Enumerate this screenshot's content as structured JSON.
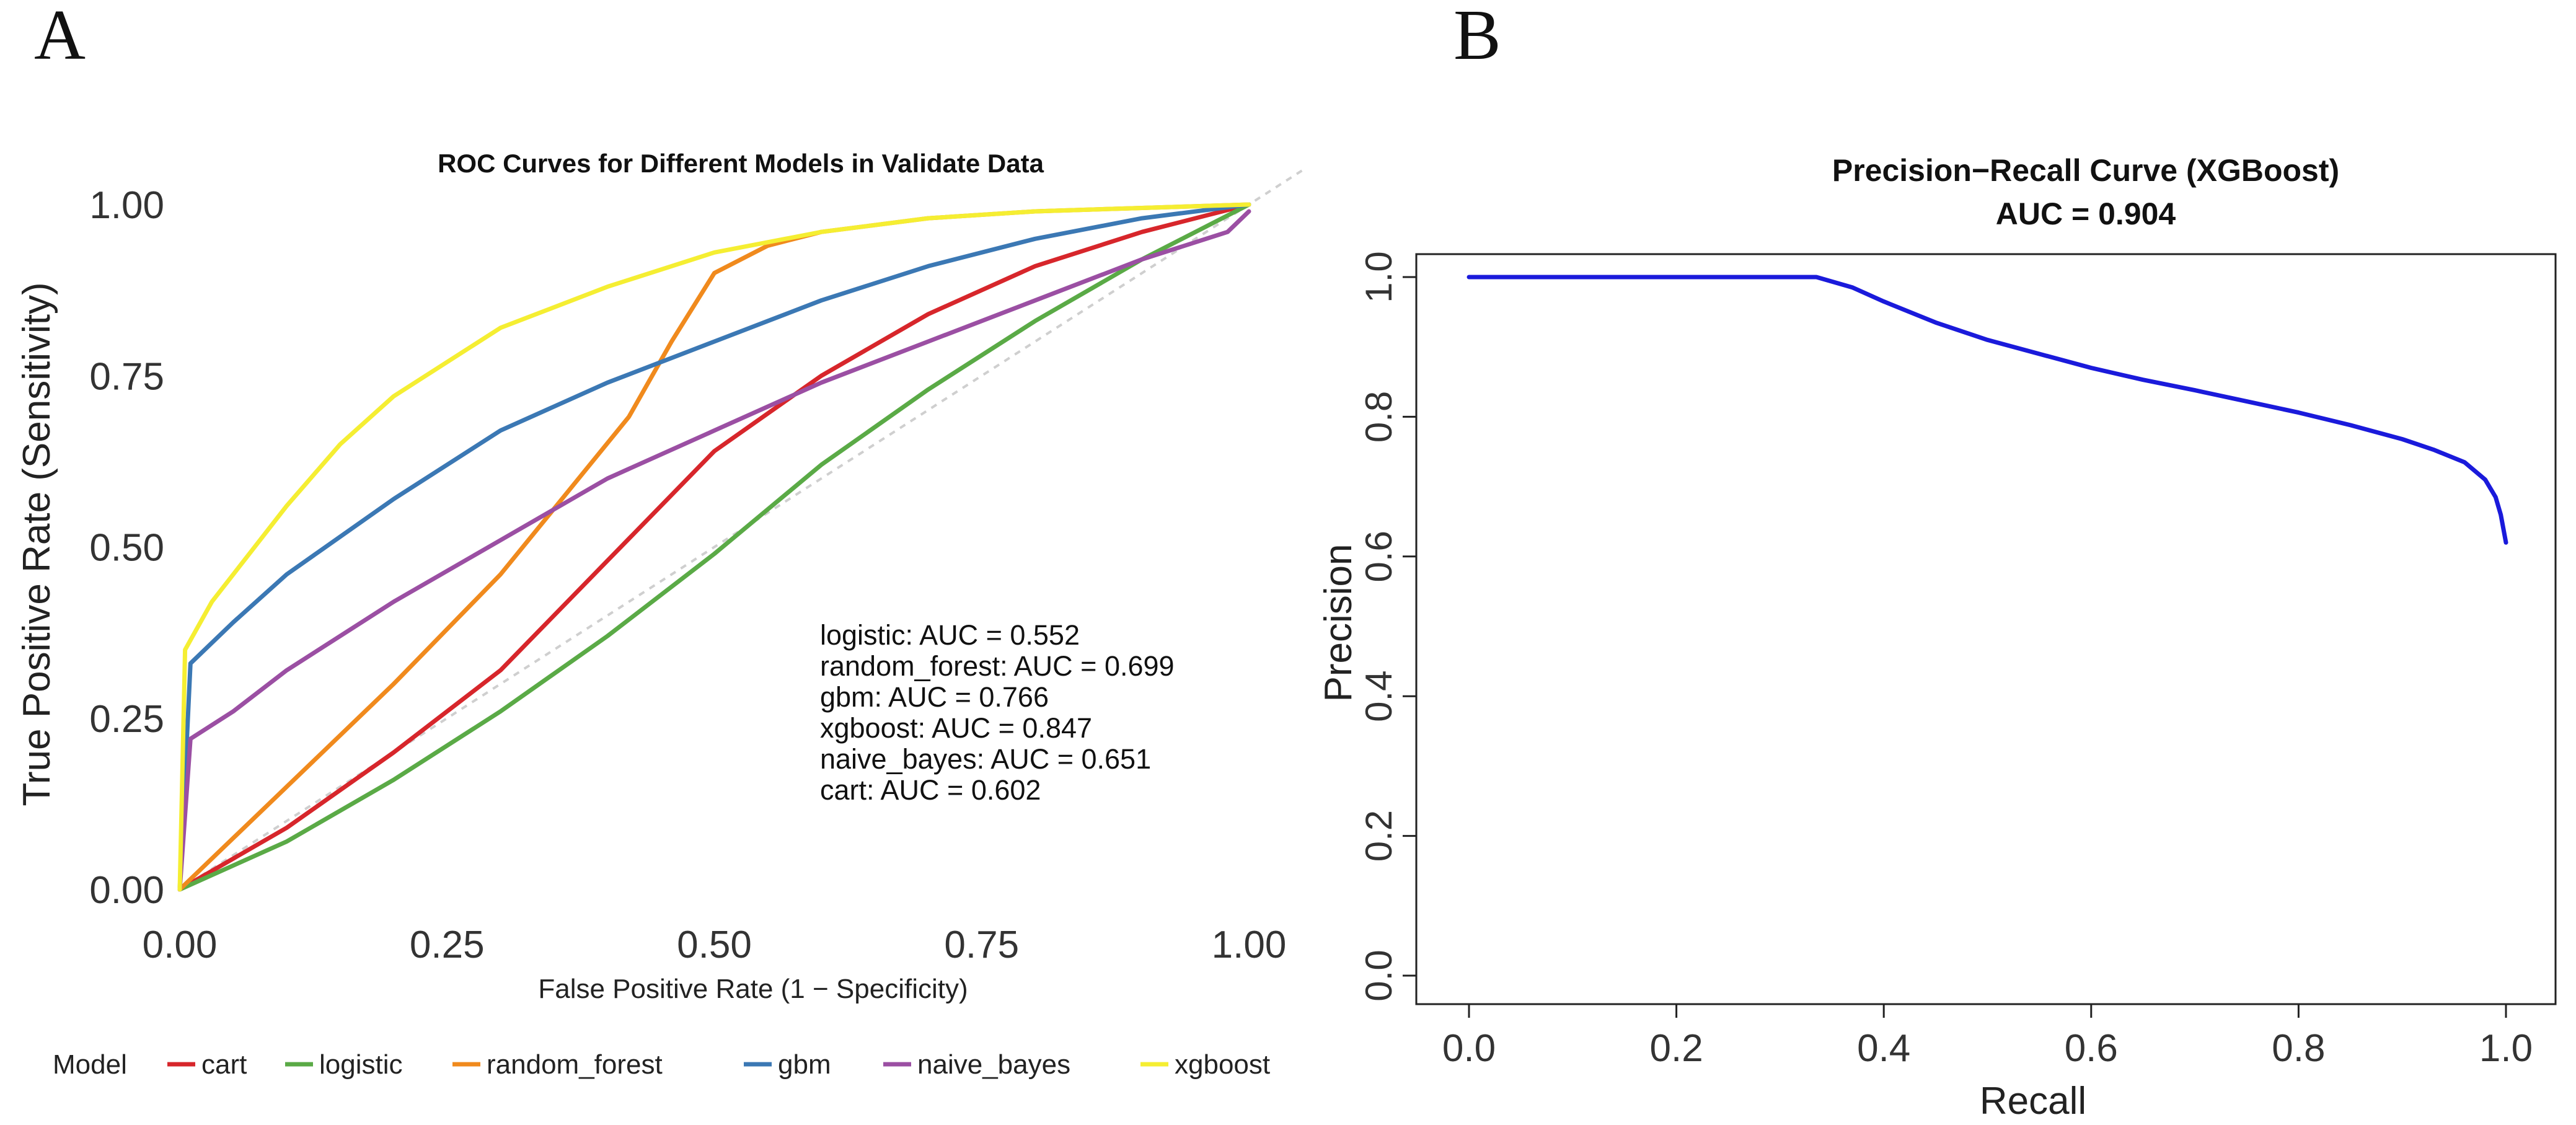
{
  "figure": {
    "panel_a_label": "A",
    "panel_b_label": "B"
  },
  "chart_data": [
    {
      "type": "line",
      "title": "ROC Curves for Different Models  in Validate Data",
      "xlabel": "False Positive Rate (1 − Specificity)",
      "ylabel": "True Positive Rate (Sensitivity)",
      "xlim": [
        0,
        1
      ],
      "ylim": [
        0,
        1
      ],
      "x_ticks": [
        "0.00",
        "0.25",
        "0.50",
        "0.75",
        "1.00"
      ],
      "y_ticks": [
        "0.00",
        "0.25",
        "0.50",
        "0.75",
        "1.00"
      ],
      "grid": false,
      "reference_line": "diagonal, dotted grey",
      "legend_title": "Model",
      "legend_position": "bottom",
      "legend_order": [
        "cart",
        "logistic",
        "random_forest",
        "gbm",
        "naive_bayes",
        "xgboost"
      ],
      "annotation_lines": [
        "logistic: AUC = 0.552",
        "random_forest: AUC = 0.699",
        "gbm: AUC = 0.766",
        "xgboost: AUC = 0.847",
        "naive_bayes: AUC = 0.651",
        "cart: AUC = 0.602"
      ],
      "series": [
        {
          "name": "cart",
          "color": "#d7262b",
          "auc": 0.602,
          "points": [
            [
              0,
              0
            ],
            [
              0.1,
              0.09
            ],
            [
              0.2,
              0.2
            ],
            [
              0.3,
              0.32
            ],
            [
              0.4,
              0.48
            ],
            [
              0.5,
              0.64
            ],
            [
              0.6,
              0.75
            ],
            [
              0.7,
              0.84
            ],
            [
              0.8,
              0.91
            ],
            [
              0.9,
              0.96
            ],
            [
              1,
              1
            ]
          ]
        },
        {
          "name": "logistic",
          "color": "#5aaa46",
          "auc": 0.552,
          "points": [
            [
              0,
              0
            ],
            [
              0.1,
              0.07
            ],
            [
              0.2,
              0.16
            ],
            [
              0.3,
              0.26
            ],
            [
              0.4,
              0.37
            ],
            [
              0.5,
              0.49
            ],
            [
              0.6,
              0.62
            ],
            [
              0.7,
              0.73
            ],
            [
              0.8,
              0.83
            ],
            [
              0.9,
              0.92
            ],
            [
              1,
              1
            ]
          ]
        },
        {
          "name": "random_forest",
          "color": "#f08a1d",
          "auc": 0.699,
          "points": [
            [
              0,
              0
            ],
            [
              0.1,
              0.15
            ],
            [
              0.2,
              0.3
            ],
            [
              0.3,
              0.46
            ],
            [
              0.42,
              0.69
            ],
            [
              0.46,
              0.8
            ],
            [
              0.5,
              0.9
            ],
            [
              0.55,
              0.94
            ],
            [
              0.6,
              0.96
            ],
            [
              0.7,
              0.98
            ],
            [
              0.8,
              0.99
            ],
            [
              0.9,
              0.995
            ],
            [
              1,
              1
            ]
          ]
        },
        {
          "name": "gbm",
          "color": "#3b78b4",
          "auc": 0.766,
          "points": [
            [
              0,
              0
            ],
            [
              0.01,
              0.33
            ],
            [
              0.05,
              0.39
            ],
            [
              0.1,
              0.46
            ],
            [
              0.2,
              0.57
            ],
            [
              0.3,
              0.67
            ],
            [
              0.4,
              0.74
            ],
            [
              0.5,
              0.8
            ],
            [
              0.6,
              0.86
            ],
            [
              0.7,
              0.91
            ],
            [
              0.8,
              0.95
            ],
            [
              0.9,
              0.98
            ],
            [
              1,
              1
            ]
          ]
        },
        {
          "name": "naive_bayes",
          "color": "#9b4fa3",
          "auc": 0.651,
          "points": [
            [
              0,
              0
            ],
            [
              0.01,
              0.22
            ],
            [
              0.05,
              0.26
            ],
            [
              0.1,
              0.32
            ],
            [
              0.2,
              0.42
            ],
            [
              0.3,
              0.51
            ],
            [
              0.4,
              0.6
            ],
            [
              0.5,
              0.67
            ],
            [
              0.6,
              0.74
            ],
            [
              0.7,
              0.8
            ],
            [
              0.8,
              0.86
            ],
            [
              0.9,
              0.92
            ],
            [
              0.98,
              0.96
            ],
            [
              1,
              0.99
            ]
          ]
        },
        {
          "name": "xgboost",
          "color": "#f5ee32",
          "auc": 0.847,
          "points": [
            [
              0,
              0
            ],
            [
              0.005,
              0.35
            ],
            [
              0.03,
              0.42
            ],
            [
              0.07,
              0.5
            ],
            [
              0.1,
              0.56
            ],
            [
              0.15,
              0.65
            ],
            [
              0.2,
              0.72
            ],
            [
              0.3,
              0.82
            ],
            [
              0.4,
              0.88
            ],
            [
              0.5,
              0.93
            ],
            [
              0.6,
              0.96
            ],
            [
              0.7,
              0.98
            ],
            [
              0.8,
              0.99
            ],
            [
              0.9,
              0.995
            ],
            [
              1,
              1
            ]
          ]
        }
      ]
    },
    {
      "type": "line",
      "title": "Precision−Recall Curve (XGBoost)",
      "subtitle": "AUC = 0.904",
      "xlabel": "Recall",
      "ylabel": "Precision",
      "xlim": [
        0,
        1
      ],
      "ylim": [
        0,
        1
      ],
      "x_ticks": [
        "0.0",
        "0.2",
        "0.4",
        "0.6",
        "0.8",
        "1.0"
      ],
      "y_ticks": [
        "0.0",
        "0.2",
        "0.4",
        "0.6",
        "0.8",
        "1.0"
      ],
      "grid": false,
      "series": [
        {
          "name": "XGBoost",
          "color": "#1a1adb",
          "auc": 0.904,
          "points": [
            [
              0,
              1.0
            ],
            [
              0.335,
              1.0
            ],
            [
              0.37,
              0.985
            ],
            [
              0.4,
              0.965
            ],
            [
              0.45,
              0.935
            ],
            [
              0.5,
              0.91
            ],
            [
              0.55,
              0.89
            ],
            [
              0.6,
              0.87
            ],
            [
              0.65,
              0.853
            ],
            [
              0.7,
              0.838
            ],
            [
              0.75,
              0.822
            ],
            [
              0.8,
              0.806
            ],
            [
              0.85,
              0.788
            ],
            [
              0.9,
              0.768
            ],
            [
              0.93,
              0.753
            ],
            [
              0.96,
              0.735
            ],
            [
              0.98,
              0.71
            ],
            [
              0.99,
              0.685
            ],
            [
              0.995,
              0.66
            ],
            [
              1.0,
              0.62
            ]
          ]
        }
      ]
    }
  ]
}
